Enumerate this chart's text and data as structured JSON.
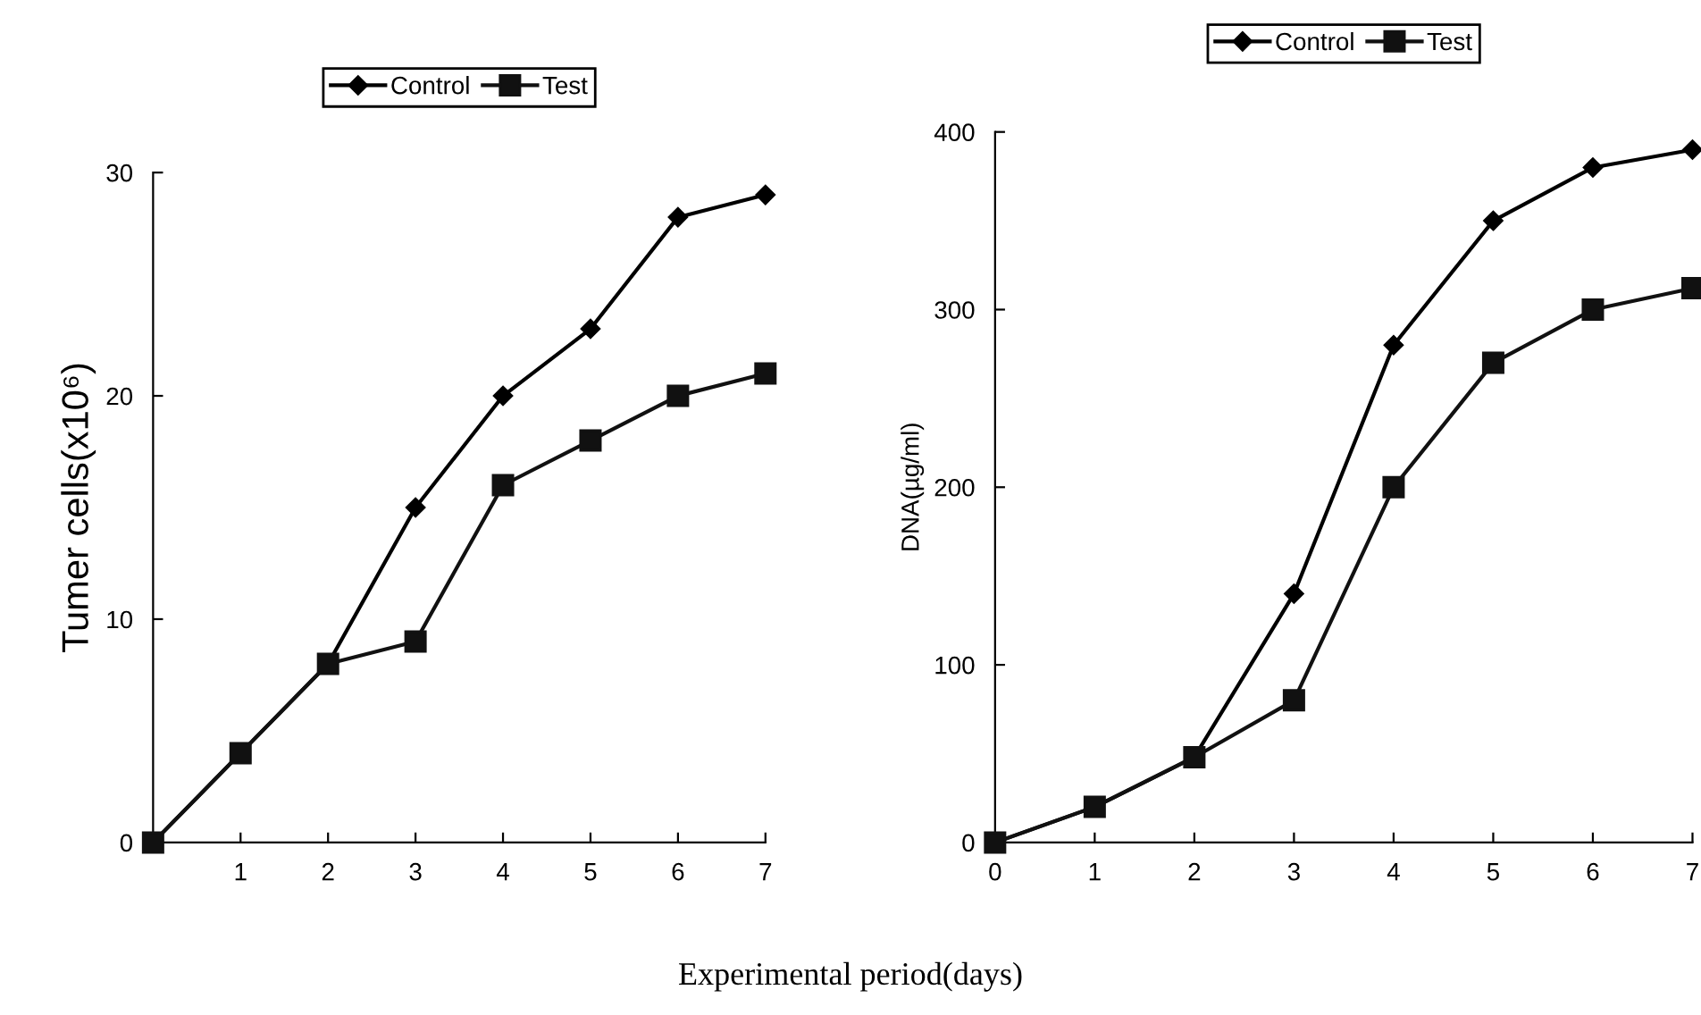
{
  "chart_data": [
    {
      "type": "line",
      "ylabel": "Tumer cells(x10⁶)",
      "xlabel": "Experimental period(days)",
      "x": [
        0,
        1,
        2,
        3,
        4,
        5,
        6,
        7
      ],
      "series": [
        {
          "name": "Control",
          "color": "#000000",
          "marker": "diamond",
          "values": [
            0,
            4,
            8,
            15,
            20,
            23,
            28,
            29
          ]
        },
        {
          "name": "Test",
          "color": "#111111",
          "marker": "square",
          "values": [
            0,
            4,
            8,
            9,
            16,
            18,
            20,
            21
          ]
        }
      ],
      "xlim": [
        0,
        7
      ],
      "xticks": [
        {
          "value": 0,
          "label": null
        },
        1,
        2,
        3,
        4,
        5,
        6,
        7
      ],
      "ylim": [
        0,
        30
      ],
      "yticks": [
        0,
        10,
        20,
        30
      ],
      "legend": "top",
      "grid": false
    },
    {
      "type": "line",
      "ylabel": "DNA(µg/ml)",
      "x": [
        0,
        1,
        2,
        3,
        4,
        5,
        6,
        7
      ],
      "series": [
        {
          "name": "Control",
          "color": "#000000",
          "marker": "diamond",
          "values": [
            0,
            20,
            48,
            140,
            280,
            350,
            380,
            390
          ]
        },
        {
          "name": "Test",
          "color": "#111111",
          "marker": "square",
          "values": [
            0,
            20,
            48,
            80,
            200,
            270,
            300,
            312
          ]
        }
      ],
      "xlim": [
        0,
        7
      ],
      "xticks": [
        0,
        1,
        2,
        3,
        4,
        5,
        6,
        7
      ],
      "ylim": [
        0,
        400
      ],
      "yticks": [
        0,
        100,
        200,
        300,
        400
      ],
      "legend": "top",
      "grid": false
    }
  ]
}
